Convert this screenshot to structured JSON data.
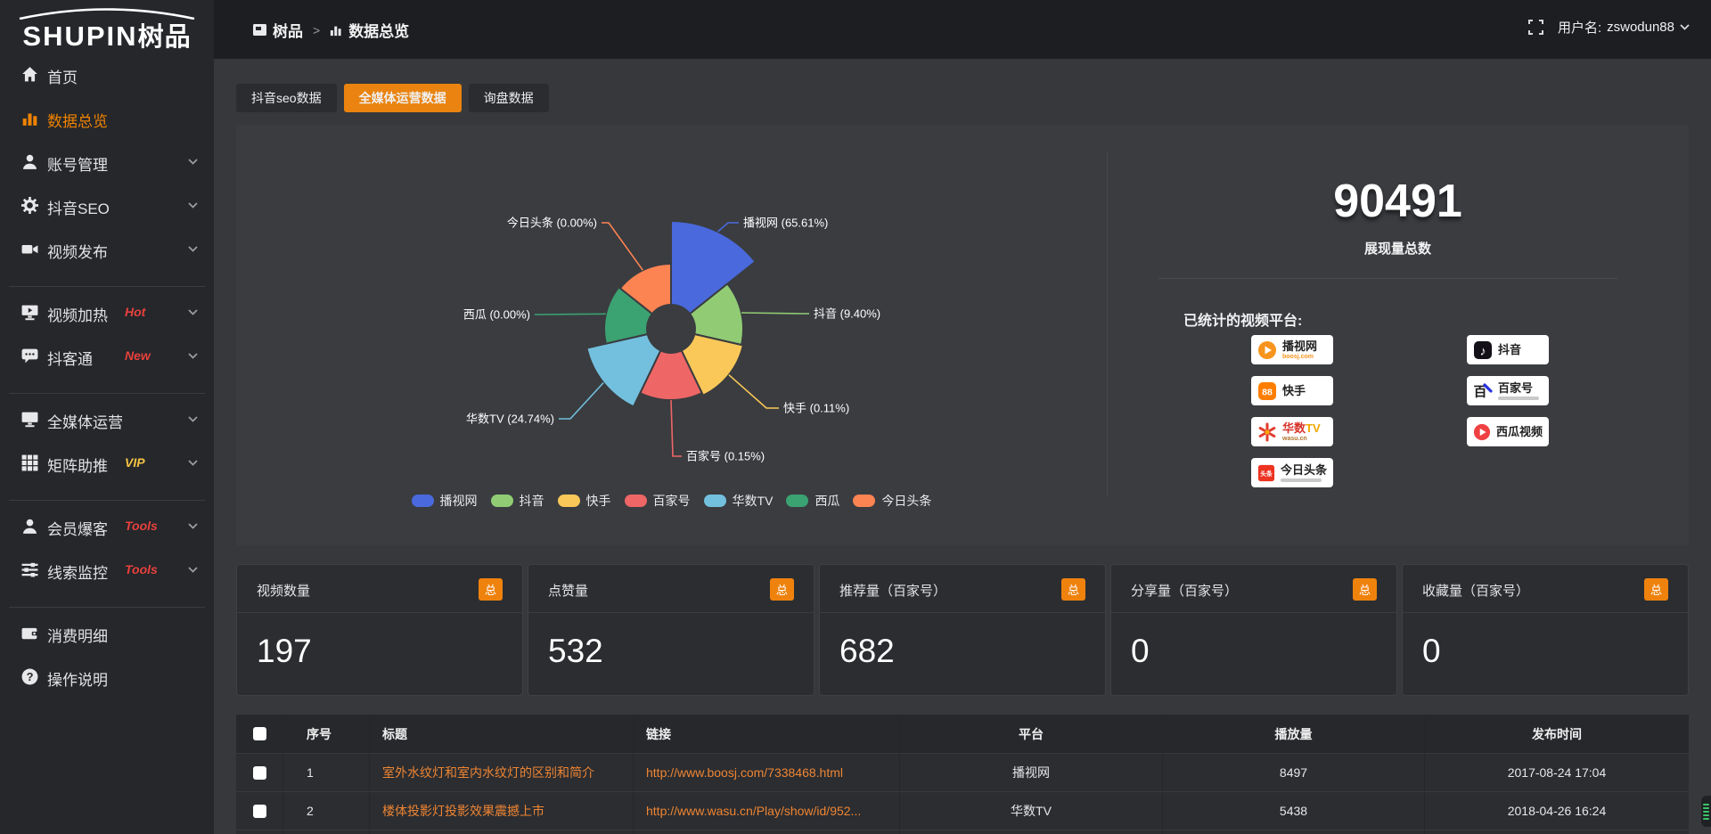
{
  "brand": {
    "text_en": "SHUPIN",
    "text_cn": "树品"
  },
  "topbar": {
    "breadcrumb": [
      {
        "label": "树品"
      },
      {
        "label": "数据总览"
      }
    ],
    "username_prefix": "用户名:",
    "username": "zswodun88"
  },
  "sidebar": {
    "items": [
      {
        "label": "首页",
        "icon": "home"
      },
      {
        "label": "数据总览",
        "icon": "bar-chart",
        "active": true
      },
      {
        "label": "账号管理",
        "icon": "user",
        "chevron": true
      },
      {
        "label": "抖音SEO",
        "icon": "gear",
        "chevron": true
      },
      {
        "label": "视频发布",
        "icon": "video-camera",
        "chevron": true
      },
      {
        "divider": true
      },
      {
        "label": "视频加热",
        "icon": "monitor-play",
        "badge": "Hot",
        "badge_color": "#e8413c",
        "chevron": true
      },
      {
        "label": "抖客通",
        "icon": "chat",
        "badge": "New",
        "badge_color": "#e8413c",
        "chevron": true
      },
      {
        "divider": true
      },
      {
        "label": "全媒体运营",
        "icon": "monitor",
        "chevron": true
      },
      {
        "label": "矩阵助推",
        "icon": "grid",
        "badge": "VIP",
        "badge_color": "#f5c342",
        "chevron": true
      },
      {
        "divider": true
      },
      {
        "label": "会员爆客",
        "icon": "user",
        "badge": "Tools",
        "badge_color": "#e8413c",
        "chevron": true
      },
      {
        "label": "线索监控",
        "icon": "sliders",
        "badge": "Tools",
        "badge_color": "#e8413c",
        "chevron": true
      },
      {
        "divider": true
      },
      {
        "label": "消费明细",
        "icon": "wallet"
      },
      {
        "label": "操作说明",
        "icon": "question"
      }
    ]
  },
  "tabs": [
    {
      "label": "抖音seo数据"
    },
    {
      "label": "全媒体运营数据",
      "active": true
    },
    {
      "label": "询盘数据"
    }
  ],
  "chart_data": {
    "type": "pie",
    "subtype": "nightingale-rose",
    "legend_position": "bottom",
    "series": [
      {
        "name": "播视网",
        "pct": 65.61,
        "pct_label": "65.61%",
        "color": "#4a69dd",
        "radius": 121
      },
      {
        "name": "抖音",
        "pct": 9.4,
        "pct_label": "9.40%",
        "color": "#91cc75",
        "radius": 81
      },
      {
        "name": "快手",
        "pct": 0.11,
        "pct_label": "0.11%",
        "color": "#fac858",
        "radius": 83
      },
      {
        "name": "百家号",
        "pct": 0.15,
        "pct_label": "0.15%",
        "color": "#ee6666",
        "radius": 80
      },
      {
        "name": "华数TV",
        "pct": 24.74,
        "pct_label": "24.74%",
        "color": "#73c0de",
        "radius": 97
      },
      {
        "name": "西瓜",
        "pct": 0.0,
        "pct_label": "0.00%",
        "color": "#3ba272",
        "radius": 75
      },
      {
        "name": "今日头条",
        "pct": 0.0,
        "pct_label": "0.00%",
        "color": "#fc8452",
        "radius": 73
      }
    ]
  },
  "summary": {
    "total_value": "90491",
    "total_label": "展现量总数",
    "platforms_label": "已统计的视频平台:",
    "platforms": [
      {
        "name": "播视网",
        "sub": "boosj.com",
        "icon": "boosj"
      },
      {
        "name": "抖音",
        "icon": "douyin"
      },
      {
        "name": "快手",
        "icon": "kuaishou"
      },
      {
        "name": "百家号",
        "icon": "baijiahao",
        "strip": true
      },
      {
        "name": "华数TV",
        "sub": "wasu.cn",
        "icon": "wasu"
      },
      {
        "name": "西瓜视频",
        "icon": "xigua"
      },
      {
        "name": "今日头条",
        "icon": "toutiao",
        "strip": true
      }
    ]
  },
  "stat_cards": [
    {
      "label": "视频数量",
      "badge": "总",
      "value": "197"
    },
    {
      "label": "点赞量",
      "badge": "总",
      "value": "532"
    },
    {
      "label": "推荐量（百家号）",
      "badge": "总",
      "value": "682"
    },
    {
      "label": "分享量（百家号）",
      "badge": "总",
      "value": "0"
    },
    {
      "label": "收藏量（百家号）",
      "badge": "总",
      "value": "0"
    }
  ],
  "table": {
    "columns": [
      "序号",
      "标题",
      "链接",
      "平台",
      "播放量",
      "发布时间"
    ],
    "rows": [
      {
        "no": "1",
        "title": "室外水纹灯和室内水纹灯的区别和简介",
        "link": "http://www.boosj.com/7338468.html",
        "platform": "播视网",
        "plays": "8497",
        "time": "2017-08-24 17:04"
      },
      {
        "no": "2",
        "title": "楼体投影灯投影效果震撼上市",
        "link": "http://www.wasu.cn/Play/show/id/952...",
        "platform": "华数TV",
        "plays": "5438",
        "time": "2018-04-26 16:24"
      }
    ]
  }
}
